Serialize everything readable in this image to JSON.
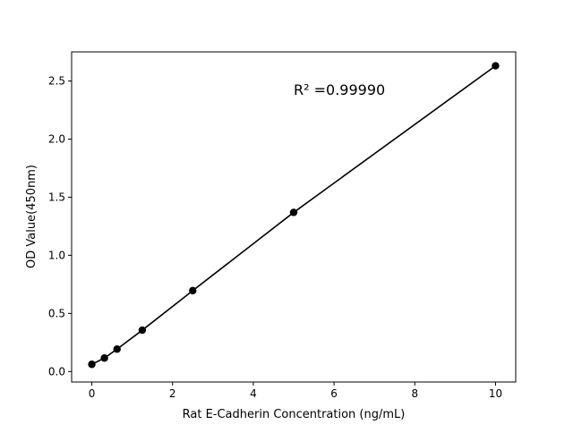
{
  "chart_data": {
    "type": "scatter",
    "title": "",
    "xlabel": "Rat  E-Cadherin Concentration (ng/mL)",
    "ylabel": "OD Value(450nm)",
    "xlim": [
      -0.5,
      10.5
    ],
    "ylim": [
      -0.09,
      2.75
    ],
    "xticks": [
      0,
      2,
      4,
      6,
      8,
      10
    ],
    "xtick_labels": [
      "0",
      "2",
      "4",
      "6",
      "8",
      "10"
    ],
    "yticks": [
      0.0,
      0.5,
      1.0,
      1.5,
      2.0,
      2.5
    ],
    "ytick_labels": [
      "0.0",
      "0.5",
      "1.0",
      "1.5",
      "2.0",
      "2.5"
    ],
    "grid": false,
    "series": [
      {
        "x": [
          0,
          0.3125,
          0.625,
          1.25,
          2.5,
          5,
          10
        ],
        "y": [
          0.062,
          0.116,
          0.193,
          0.356,
          0.696,
          1.369,
          2.63
        ],
        "color": "#000000",
        "marker": "circle",
        "line": true
      }
    ],
    "annotation": {
      "text": "R² =0.99990",
      "x": 5,
      "y": 2.38
    }
  }
}
